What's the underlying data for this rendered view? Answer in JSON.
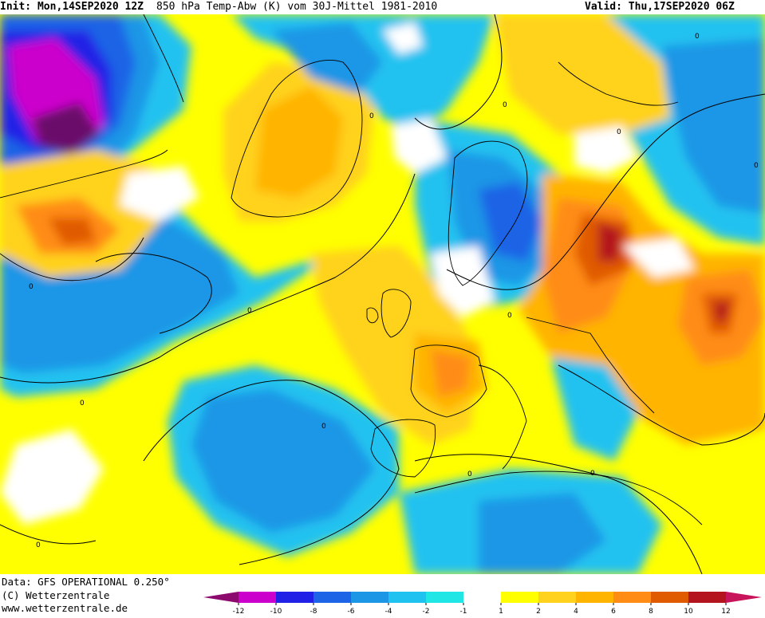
{
  "header": {
    "init": "Init: Mon,14SEP2020 12Z",
    "title": "850 hPa Temp-Abw (K) vom 30J-Mittel 1981-2010",
    "valid": "Valid: Thu,17SEP2020 06Z"
  },
  "footer": {
    "data_source": "Data: GFS OPERATIONAL 0.250°",
    "copyright": "(C) Wetterzentrale",
    "url": "www.wetterzentrale.de"
  },
  "legend": {
    "ticks": [
      "-12",
      "-10",
      "-8",
      "-6",
      "-4",
      "-2",
      "-1",
      "1",
      "2",
      "4",
      "6",
      "8",
      "10",
      "12"
    ],
    "colors": [
      "#cc00cc",
      "#2020e6",
      "#1e64e6",
      "#1e96e6",
      "#20c2f0",
      "#20e6e6",
      "#ffffff",
      "#ffff00",
      "#ffd21e",
      "#ffb400",
      "#ff8c14",
      "#e05a00",
      "#b4141e"
    ]
  },
  "map_labels": [
    "0",
    "0",
    "0",
    "0",
    "0",
    "0",
    "0",
    "0",
    "0",
    "0",
    "0",
    "0",
    "0"
  ]
}
